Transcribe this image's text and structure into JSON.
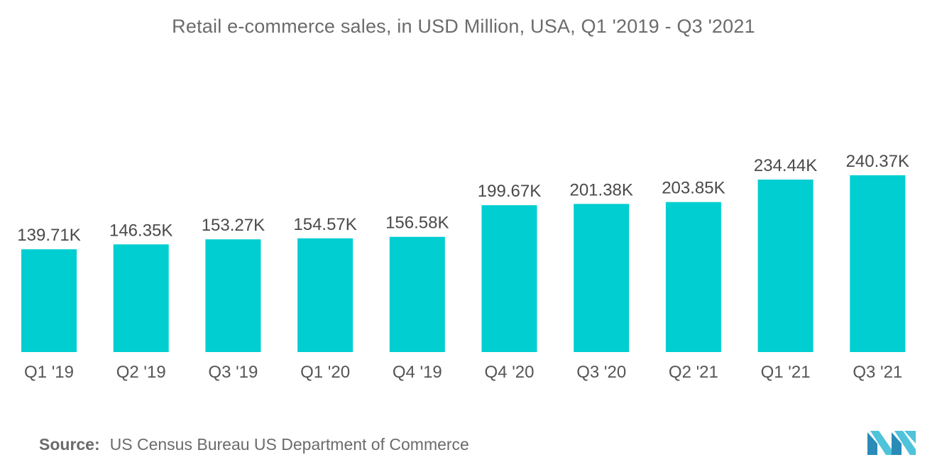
{
  "chart_data": {
    "type": "bar",
    "title": "Retail e-commerce sales, in USD Million, USA, Q1 '2019 - Q3 '2021",
    "categories": [
      "Q1 '19",
      "Q2 '19",
      "Q3 '19",
      "Q1 '20",
      "Q4 '19",
      "Q4 '20",
      "Q3 '20",
      "Q2 '21",
      "Q1 '21",
      "Q3 '21"
    ],
    "values": [
      139.71,
      146.35,
      153.27,
      154.57,
      156.58,
      199.67,
      201.38,
      203.85,
      234.44,
      240.37
    ],
    "value_labels": [
      "139.71K",
      "146.35K",
      "153.27K",
      "154.57K",
      "156.58K",
      "199.67K",
      "201.38K",
      "203.85K",
      "234.44K",
      "240.37K"
    ],
    "xlabel": "",
    "ylabel": "",
    "grid": false,
    "legend": "none",
    "bar_color": "#00ced1"
  },
  "source": {
    "label": "Source:",
    "text": "US Census Bureau US Department of Commerce"
  },
  "logo": {
    "icon": "mordor-intelligence-logo-icon",
    "colors": [
      "#2a8bb8",
      "#4fc3d9"
    ]
  }
}
